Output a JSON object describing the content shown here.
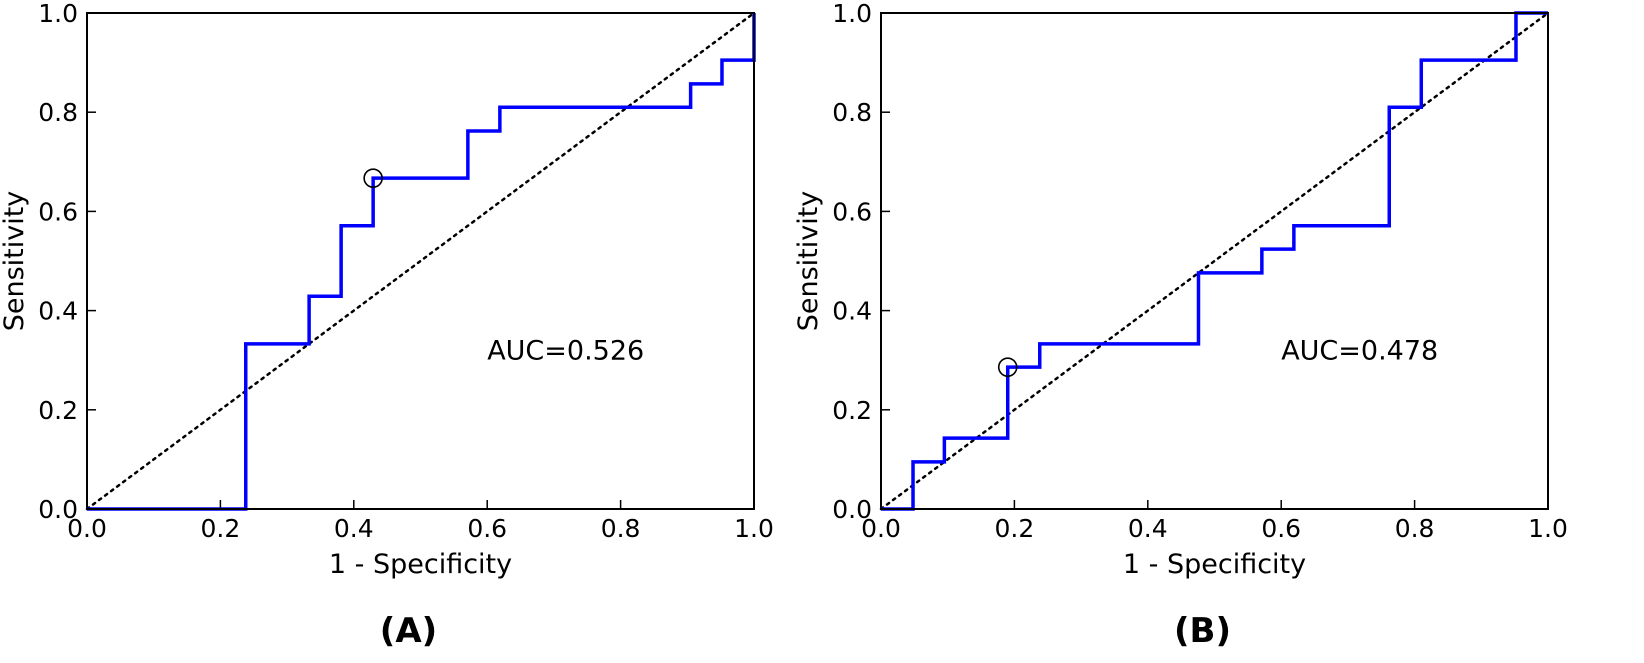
{
  "chart_data": [
    {
      "type": "line",
      "panel_label": "(A)",
      "xlabel": "1 - Specificity",
      "ylabel": "Sensitivity",
      "xlim": [
        0.0,
        1.0
      ],
      "ylim": [
        0.0,
        1.0
      ],
      "xticks": [
        "0.0",
        "0.2",
        "0.4",
        "0.6",
        "0.8",
        "1.0"
      ],
      "yticks": [
        "0.0",
        "0.2",
        "0.4",
        "0.6",
        "0.8",
        "1.0"
      ],
      "annotation": "AUC=0.526",
      "annotation_position": {
        "x": 0.6,
        "y": 0.32
      },
      "grid": false,
      "series": [
        {
          "x": [
            0.0,
            0.238,
            0.238,
            0.333,
            0.333,
            0.381,
            0.381,
            0.429,
            0.429,
            0.571,
            0.571,
            0.619,
            0.619,
            0.905,
            0.905,
            0.952,
            0.952,
            1.0,
            1.0
          ],
          "y": [
            0.0,
            0.0,
            0.333,
            0.333,
            0.429,
            0.429,
            0.571,
            0.571,
            0.667,
            0.667,
            0.762,
            0.762,
            0.81,
            0.81,
            0.857,
            0.857,
            0.905,
            0.905,
            1.0
          ],
          "color": "#0000ff"
        }
      ],
      "reference_line": {
        "x": [
          0.0,
          1.0
        ],
        "y": [
          0.0,
          1.0
        ],
        "style": "dotted",
        "color": "#000000"
      },
      "marker": {
        "x": 0.429,
        "y": 0.667,
        "shape": "open-circle"
      }
    },
    {
      "type": "line",
      "panel_label": "(B)",
      "xlabel": "1 - Specificity",
      "ylabel": "Sensitivity",
      "xlim": [
        0.0,
        1.0
      ],
      "ylim": [
        0.0,
        1.0
      ],
      "xticks": [
        "0.0",
        "0.2",
        "0.4",
        "0.6",
        "0.8",
        "1.0"
      ],
      "yticks": [
        "0.0",
        "0.2",
        "0.4",
        "0.6",
        "0.8",
        "1.0"
      ],
      "annotation": "AUC=0.478",
      "annotation_position": {
        "x": 0.6,
        "y": 0.32
      },
      "grid": false,
      "series": [
        {
          "x": [
            0.0,
            0.048,
            0.048,
            0.095,
            0.095,
            0.19,
            0.19,
            0.238,
            0.238,
            0.476,
            0.476,
            0.571,
            0.571,
            0.619,
            0.619,
            0.762,
            0.762,
            0.81,
            0.81,
            0.952,
            0.952,
            1.0
          ],
          "y": [
            0.0,
            0.0,
            0.095,
            0.095,
            0.143,
            0.143,
            0.286,
            0.286,
            0.333,
            0.333,
            0.476,
            0.476,
            0.524,
            0.524,
            0.571,
            0.571,
            0.81,
            0.81,
            0.905,
            0.905,
            1.0,
            1.0
          ],
          "color": "#0000ff"
        }
      ],
      "reference_line": {
        "x": [
          0.0,
          1.0
        ],
        "y": [
          0.0,
          1.0
        ],
        "style": "dotted",
        "color": "#000000"
      },
      "marker": {
        "x": 0.19,
        "y": 0.286,
        "shape": "open-circle"
      }
    }
  ]
}
